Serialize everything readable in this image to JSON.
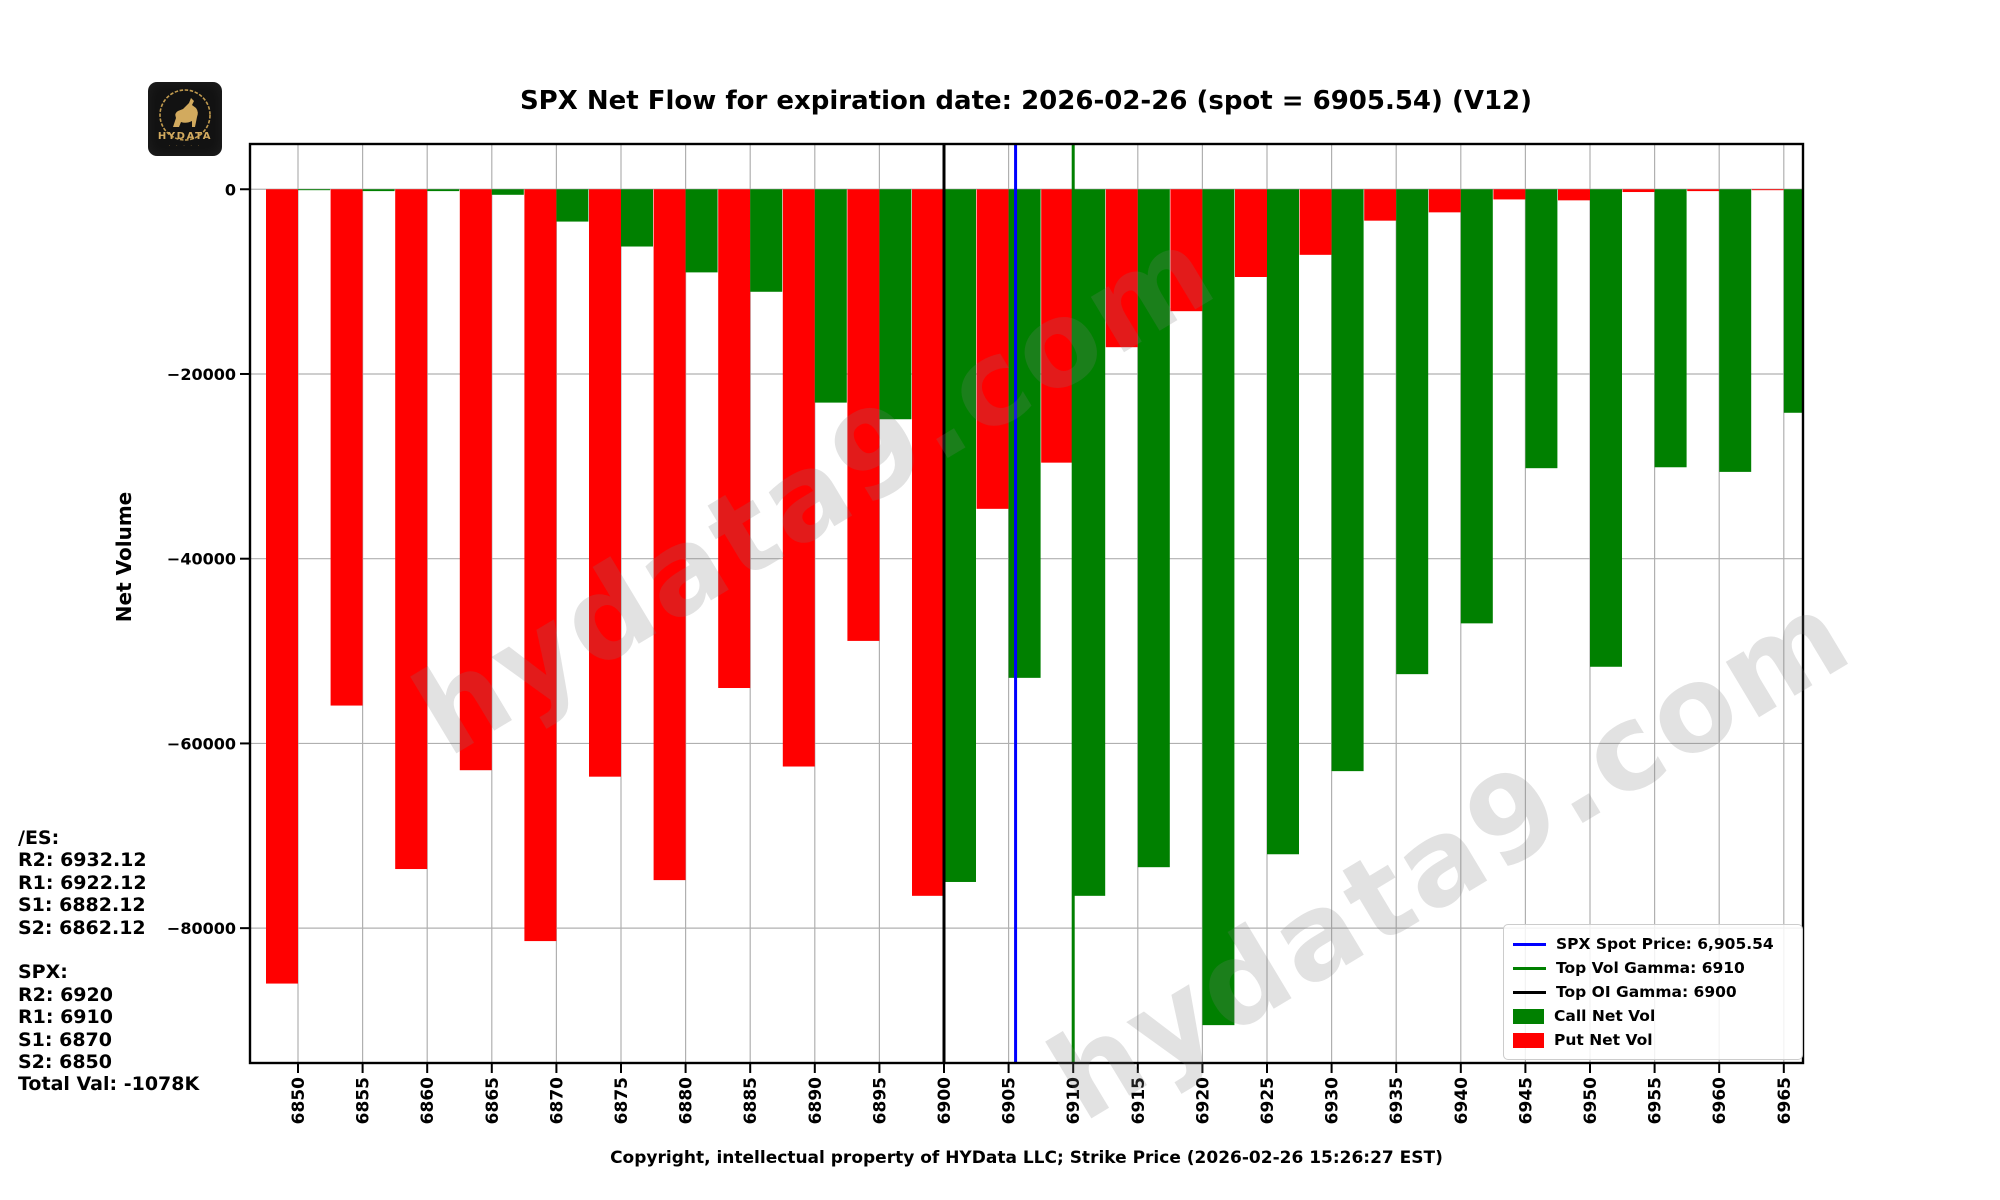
{
  "title": "SPX Net Flow for expiration date: 2026-02-26 (spot = 6905.54) (V12)",
  "watermark": "hydata9.com",
  "logo": {
    "brand": "HYDATA",
    "tagline": "· · · · ·"
  },
  "y_axis": {
    "label": "Net Volume",
    "ticks": [
      0,
      -20000,
      -40000,
      -60000,
      -80000
    ]
  },
  "x_axis": {
    "label": "Copyright, intellectual property of HYData LLC; Strike Price (2026-02-26 15:26:27 EST)"
  },
  "side_panel": {
    "lines": [
      "/ES:",
      "R2: 6932.12",
      "R1: 6922.12",
      "S1: 6882.12",
      "S2: 6862.12",
      "",
      "SPX:",
      "R2: 6920",
      "R1: 6910",
      "S1: 6870",
      "S2: 6850",
      "Total Val: -1078K"
    ]
  },
  "legend": {
    "items": [
      {
        "type": "line",
        "color": "#0000ff",
        "label": "SPX Spot Price: 6,905.54"
      },
      {
        "type": "line",
        "color": "#008000",
        "label": "Top Vol Gamma: 6910"
      },
      {
        "type": "line",
        "color": "#000000",
        "label": "Top OI Gamma: 6900"
      },
      {
        "type": "patch",
        "color": "#008000",
        "label": "Call Net Vol"
      },
      {
        "type": "patch",
        "color": "#ff0000",
        "label": "Put Net Vol"
      }
    ]
  },
  "chart_data": {
    "type": "bar",
    "title": "SPX Net Flow for expiration date: 2026-02-26 (spot = 6905.54) (V12)",
    "xlabel": "Copyright, intellectual property of HYData LLC; Strike Price (2026-02-26 15:26:27 EST)",
    "ylabel": "Net Volume",
    "ylim": [
      -94600,
      4900
    ],
    "grid": true,
    "legend_position": "lower right",
    "categories": [
      6850,
      6855,
      6860,
      6865,
      6870,
      6875,
      6880,
      6885,
      6890,
      6895,
      6900,
      6905,
      6910,
      6915,
      6920,
      6925,
      6930,
      6935,
      6940,
      6945,
      6950,
      6955,
      6960,
      6965
    ],
    "series": [
      {
        "name": "Put Net Vol",
        "color": "#ff0000",
        "values": [
          -86000,
          -55900,
          -73600,
          -62900,
          -81400,
          -63600,
          -74800,
          -54000,
          -62500,
          -48900,
          -76500,
          -34600,
          -29600,
          -17100,
          -13200,
          -9500,
          -7100,
          -3400,
          -2500,
          -1100,
          -1200,
          -300,
          -200,
          -100
        ]
      },
      {
        "name": "Call Net Vol",
        "color": "#008000",
        "values": [
          -100,
          -200,
          -200,
          -600,
          -3500,
          -6200,
          -9000,
          -11100,
          -23100,
          -24900,
          -75000,
          -52900,
          -76500,
          -73400,
          -90500,
          -72000,
          -63000,
          -52500,
          -47000,
          -30200,
          -51700,
          -30100,
          -30600,
          -24200
        ]
      }
    ],
    "vlines": [
      {
        "name": "top-oi-gamma-line",
        "x": 6900,
        "color": "#000000",
        "label": "Top OI Gamma: 6900"
      },
      {
        "name": "spot-price-line",
        "x": 6905.54,
        "color": "#0000ff",
        "label": "SPX Spot Price: 6,905.54"
      },
      {
        "name": "top-vol-gamma-line",
        "x": 6910,
        "color": "#008000",
        "label": "Top Vol Gamma: 6910"
      }
    ]
  }
}
